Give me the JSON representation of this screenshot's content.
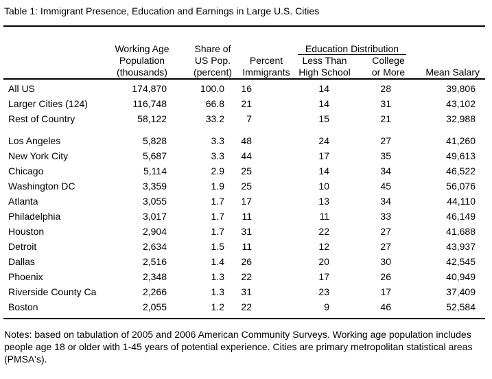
{
  "title": "Table 1:  Immigrant Presence, Education and Earnings in Large U.S. Cities",
  "headers": {
    "working_age": [
      "Working Age",
      "Population",
      "(thousands)"
    ],
    "share": [
      "Share of",
      "US Pop.",
      "(percent)"
    ],
    "percent_immigrants": [
      "Percent",
      "Immigrants"
    ],
    "education_distribution": "Education Distribution",
    "less_than_hs": [
      "Less Than",
      "High School"
    ],
    "college": [
      "College",
      "or More"
    ],
    "mean_salary": "Mean Salary"
  },
  "summary_rows": [
    {
      "name": "All US",
      "pop": "174,870",
      "share": "100.0",
      "imm": "16",
      "lths": "14",
      "col": "28",
      "sal": "39,806"
    },
    {
      "name": "Larger Cities (124)",
      "pop": "116,748",
      "share": "66.8",
      "imm": "21",
      "lths": "14",
      "col": "31",
      "sal": "43,102"
    },
    {
      "name": "Rest of Country",
      "pop": "58,122",
      "share": "33.2",
      "imm": "7",
      "lths": "15",
      "col": "21",
      "sal": "32,988"
    }
  ],
  "city_rows": [
    {
      "name": "Los Angeles",
      "pop": "5,828",
      "share": "3.3",
      "imm": "48",
      "lths": "24",
      "col": "27",
      "sal": "41,260"
    },
    {
      "name": "New York City",
      "pop": "5,687",
      "share": "3.3",
      "imm": "44",
      "lths": "17",
      "col": "35",
      "sal": "49,613"
    },
    {
      "name": "Chicago",
      "pop": "5,114",
      "share": "2.9",
      "imm": "25",
      "lths": "14",
      "col": "34",
      "sal": "46,522"
    },
    {
      "name": "Washington DC",
      "pop": "3,359",
      "share": "1.9",
      "imm": "25",
      "lths": "10",
      "col": "45",
      "sal": "56,076"
    },
    {
      "name": "Atlanta",
      "pop": "3,055",
      "share": "1.7",
      "imm": "17",
      "lths": "13",
      "col": "34",
      "sal": "44,110"
    },
    {
      "name": "Philadelphia",
      "pop": "3,017",
      "share": "1.7",
      "imm": "11",
      "lths": "11",
      "col": "33",
      "sal": "46,149"
    },
    {
      "name": "Houston",
      "pop": "2,904",
      "share": "1.7",
      "imm": "31",
      "lths": "22",
      "col": "27",
      "sal": "41,688"
    },
    {
      "name": "Detroit",
      "pop": "2,634",
      "share": "1.5",
      "imm": "11",
      "lths": "12",
      "col": "27",
      "sal": "43,937"
    },
    {
      "name": "Dallas",
      "pop": "2,516",
      "share": "1.4",
      "imm": "26",
      "lths": "20",
      "col": "30",
      "sal": "42,545"
    },
    {
      "name": "Phoenix",
      "pop": "2,348",
      "share": "1.3",
      "imm": "22",
      "lths": "17",
      "col": "26",
      "sal": "40,949"
    },
    {
      "name": "Riverside County Ca",
      "pop": "2,266",
      "share": "1.3",
      "imm": "31",
      "lths": "23",
      "col": "17",
      "sal": "37,409"
    },
    {
      "name": "Boston",
      "pop": "2,055",
      "share": "1.2",
      "imm": "22",
      "lths": "9",
      "col": "46",
      "sal": "52,584"
    }
  ],
  "notes": "Notes: based on tabulation of 2005 and 2006 American Community Surveys.  Working age population includes people age 18 or older with 1-45 years of potential experience.  Cities are primary metropolitan statistical areas (PMSA's)."
}
